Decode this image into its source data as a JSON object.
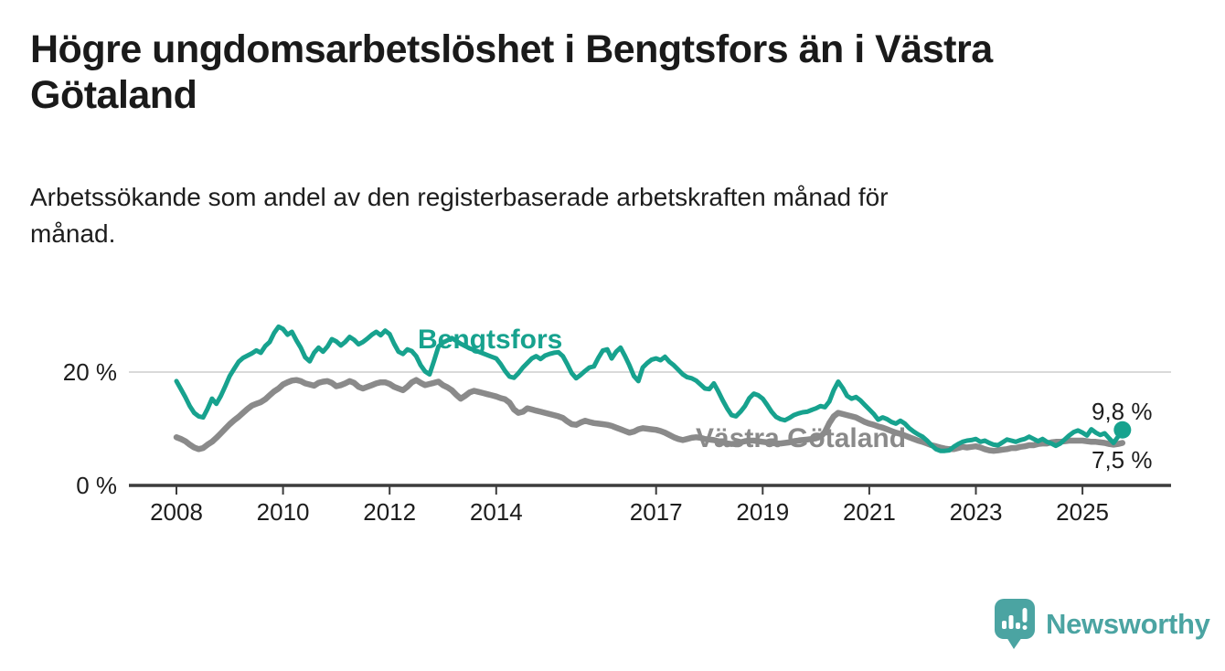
{
  "header": {
    "title": "Högre ungdomsarbetslöshet i Bengtsfors än i Västra Götaland",
    "title_lines": [
      "Högre ungdomsarbetslöshet i Bengtsfors än i Västra",
      "Götaland"
    ],
    "subtitle": "Arbetssökande som andel av den registerbaserade arbetskraften månad för månad.",
    "subtitle_lines": [
      "Arbetssökande som andel av den registerbaserade arbetskraften månad för",
      "månad."
    ]
  },
  "footer": {
    "brand": "Newsworthy",
    "logo_icon": "newsworthy-speech-bubble-bar-chart-icon",
    "brand_color": "#4ba4a2"
  },
  "colors": {
    "bengtsfors_line": "#17a28e",
    "vastra_gotaland_line": "#8a8a8a",
    "axis": "#3c3c3c",
    "gridline": "#dadada",
    "text": "#1d1d1d"
  },
  "chart_data": {
    "type": "line",
    "title": "Högre ungdomsarbetslöshet i Bengtsfors än i Västra Götaland",
    "xlabel": "",
    "ylabel": "Arbetssökande som andel av den registerbaserade arbetskraften",
    "x_start_year": 2008.0,
    "x_step_months": 1,
    "x_end": "2025-10",
    "ylim": [
      0,
      30
    ],
    "grid": "single-horizontal-at-20",
    "legend_position": "inline-labels-on-lines",
    "x_ticks": [
      {
        "label": "2008",
        "year": 2008
      },
      {
        "label": "2010",
        "year": 2010
      },
      {
        "label": "2012",
        "year": 2012
      },
      {
        "label": "2014",
        "year": 2014
      },
      {
        "label": "2017",
        "year": 2017
      },
      {
        "label": "2019",
        "year": 2019
      },
      {
        "label": "2021",
        "year": 2021
      },
      {
        "label": "2023",
        "year": 2023
      },
      {
        "label": "2025",
        "year": 2025
      }
    ],
    "y_ticks": [
      {
        "label": "20 %",
        "value": 20,
        "gridline": true
      },
      {
        "label": "0 %",
        "value": 0,
        "gridline": false
      }
    ],
    "series": [
      {
        "name": "Västra Götaland",
        "label": "Västra Götaland",
        "color": "#8a8a8a",
        "stroke_width": 6.5,
        "end_label": "7,5 %",
        "end_value": 7.5,
        "end_dot": false,
        "values": [
          8.5,
          8.2,
          7.8,
          7.2,
          6.7,
          6.4,
          6.6,
          7.2,
          7.7,
          8.4,
          9.2,
          10.0,
          10.8,
          11.5,
          12.1,
          12.8,
          13.5,
          14.1,
          14.4,
          14.7,
          15.2,
          15.9,
          16.6,
          17.1,
          17.8,
          18.2,
          18.5,
          18.6,
          18.4,
          18.0,
          17.8,
          17.6,
          18.1,
          18.3,
          18.4,
          18.1,
          17.5,
          17.7,
          18.0,
          18.4,
          18.1,
          17.4,
          17.1,
          17.4,
          17.7,
          18.0,
          18.2,
          18.2,
          17.9,
          17.4,
          17.1,
          16.8,
          17.4,
          18.2,
          18.6,
          18.1,
          17.7,
          17.9,
          18.1,
          18.3,
          17.7,
          17.3,
          16.8,
          16.0,
          15.3,
          15.8,
          16.4,
          16.7,
          16.5,
          16.3,
          16.1,
          15.9,
          15.7,
          15.4,
          15.2,
          14.6,
          13.4,
          12.8,
          13.0,
          13.6,
          13.4,
          13.2,
          13.0,
          12.8,
          12.6,
          12.4,
          12.2,
          11.9,
          11.3,
          10.8,
          10.7,
          11.1,
          11.4,
          11.2,
          11.0,
          10.9,
          10.8,
          10.7,
          10.5,
          10.2,
          9.9,
          9.6,
          9.3,
          9.5,
          9.9,
          10.1,
          10.0,
          9.9,
          9.8,
          9.6,
          9.3,
          8.9,
          8.5,
          8.2,
          8.0,
          8.2,
          8.4,
          8.5,
          8.4,
          8.2,
          8.1,
          8.0,
          7.8,
          7.6,
          7.4,
          7.3,
          7.4,
          7.6,
          7.8,
          7.9,
          7.9,
          7.8,
          7.7,
          7.6,
          7.5,
          7.4,
          7.4,
          7.5,
          7.6,
          7.8,
          7.9,
          8.0,
          8.1,
          8.2,
          8.3,
          8.6,
          9.4,
          11.0,
          12.2,
          12.8,
          12.6,
          12.4,
          12.2,
          12.0,
          11.6,
          11.2,
          10.9,
          10.7,
          10.4,
          10.2,
          9.9,
          9.6,
          9.3,
          9.1,
          8.8,
          8.5,
          8.2,
          7.9,
          7.7,
          7.4,
          7.1,
          6.9,
          6.7,
          6.5,
          6.4,
          6.4,
          6.6,
          6.8,
          6.7,
          6.8,
          6.9,
          6.7,
          6.4,
          6.2,
          6.1,
          6.2,
          6.3,
          6.4,
          6.6,
          6.6,
          6.8,
          6.9,
          7.1,
          7.1,
          7.3,
          7.4,
          7.4,
          7.6,
          7.7,
          7.7,
          7.8,
          7.9,
          7.9,
          7.9,
          7.9,
          7.8,
          7.7,
          7.7,
          7.6,
          7.5,
          7.3,
          7.2,
          7.3,
          7.5
        ]
      },
      {
        "name": "Bengtsfors",
        "label": "Bengtsfors",
        "color": "#17a28e",
        "stroke_width": 5,
        "end_label": "9,8 %",
        "end_value": 9.8,
        "end_dot": true,
        "values": [
          18.4,
          17.0,
          15.6,
          14.0,
          12.8,
          12.2,
          12.0,
          13.5,
          15.3,
          14.4,
          15.8,
          17.5,
          19.3,
          20.6,
          21.8,
          22.5,
          22.9,
          23.3,
          23.8,
          23.4,
          24.6,
          25.3,
          26.9,
          28.0,
          27.6,
          26.6,
          27.1,
          25.6,
          24.3,
          22.6,
          21.9,
          23.4,
          24.3,
          23.6,
          24.5,
          25.8,
          25.4,
          24.7,
          25.3,
          26.2,
          25.7,
          24.9,
          25.3,
          25.9,
          26.6,
          27.1,
          26.5,
          27.3,
          26.7,
          25.0,
          23.6,
          23.2,
          24.0,
          23.7,
          22.8,
          21.2,
          20.1,
          19.6,
          22.0,
          24.5,
          25.2,
          25.6,
          26.0,
          25.5,
          25.0,
          24.6,
          24.2,
          23.9,
          23.6,
          23.3,
          23.0,
          22.7,
          22.4,
          21.4,
          20.2,
          19.2,
          19.0,
          19.8,
          20.8,
          21.6,
          22.4,
          22.8,
          22.3,
          22.9,
          23.2,
          23.4,
          23.5,
          22.8,
          21.4,
          19.8,
          18.9,
          19.5,
          20.2,
          20.8,
          21.0,
          22.5,
          23.8,
          24.0,
          22.4,
          23.6,
          24.3,
          22.8,
          21.2,
          19.3,
          18.4,
          20.8,
          21.6,
          22.2,
          22.4,
          22.1,
          22.7,
          21.8,
          21.2,
          20.4,
          19.6,
          19.1,
          18.9,
          18.5,
          17.8,
          17.1,
          17.0,
          18.0,
          16.6,
          15.0,
          13.6,
          12.4,
          12.2,
          13.0,
          14.0,
          15.4,
          16.2,
          15.9,
          15.3,
          14.2,
          13.0,
          12.1,
          11.7,
          11.5,
          11.9,
          12.4,
          12.7,
          12.9,
          13.0,
          13.3,
          13.6,
          14.0,
          13.8,
          14.8,
          16.8,
          18.3,
          17.2,
          15.8,
          15.3,
          15.6,
          15.0,
          14.2,
          13.4,
          12.6,
          11.6,
          12.0,
          11.7,
          11.2,
          10.9,
          11.4,
          10.9,
          10.1,
          9.5,
          9.0,
          8.6,
          7.9,
          7.1,
          6.4,
          6.1,
          6.1,
          6.2,
          6.8,
          7.3,
          7.7,
          7.9,
          8.0,
          8.2,
          7.7,
          7.9,
          7.5,
          7.2,
          7.1,
          7.6,
          8.1,
          7.9,
          7.7,
          8.0,
          8.2,
          8.6,
          8.2,
          7.8,
          8.2,
          7.7,
          7.4,
          7.0,
          7.4,
          8.1,
          8.8,
          9.4,
          9.7,
          9.3,
          8.8,
          9.9,
          9.3,
          8.9,
          9.2,
          8.3,
          7.5,
          8.6,
          9.8
        ]
      }
    ]
  }
}
